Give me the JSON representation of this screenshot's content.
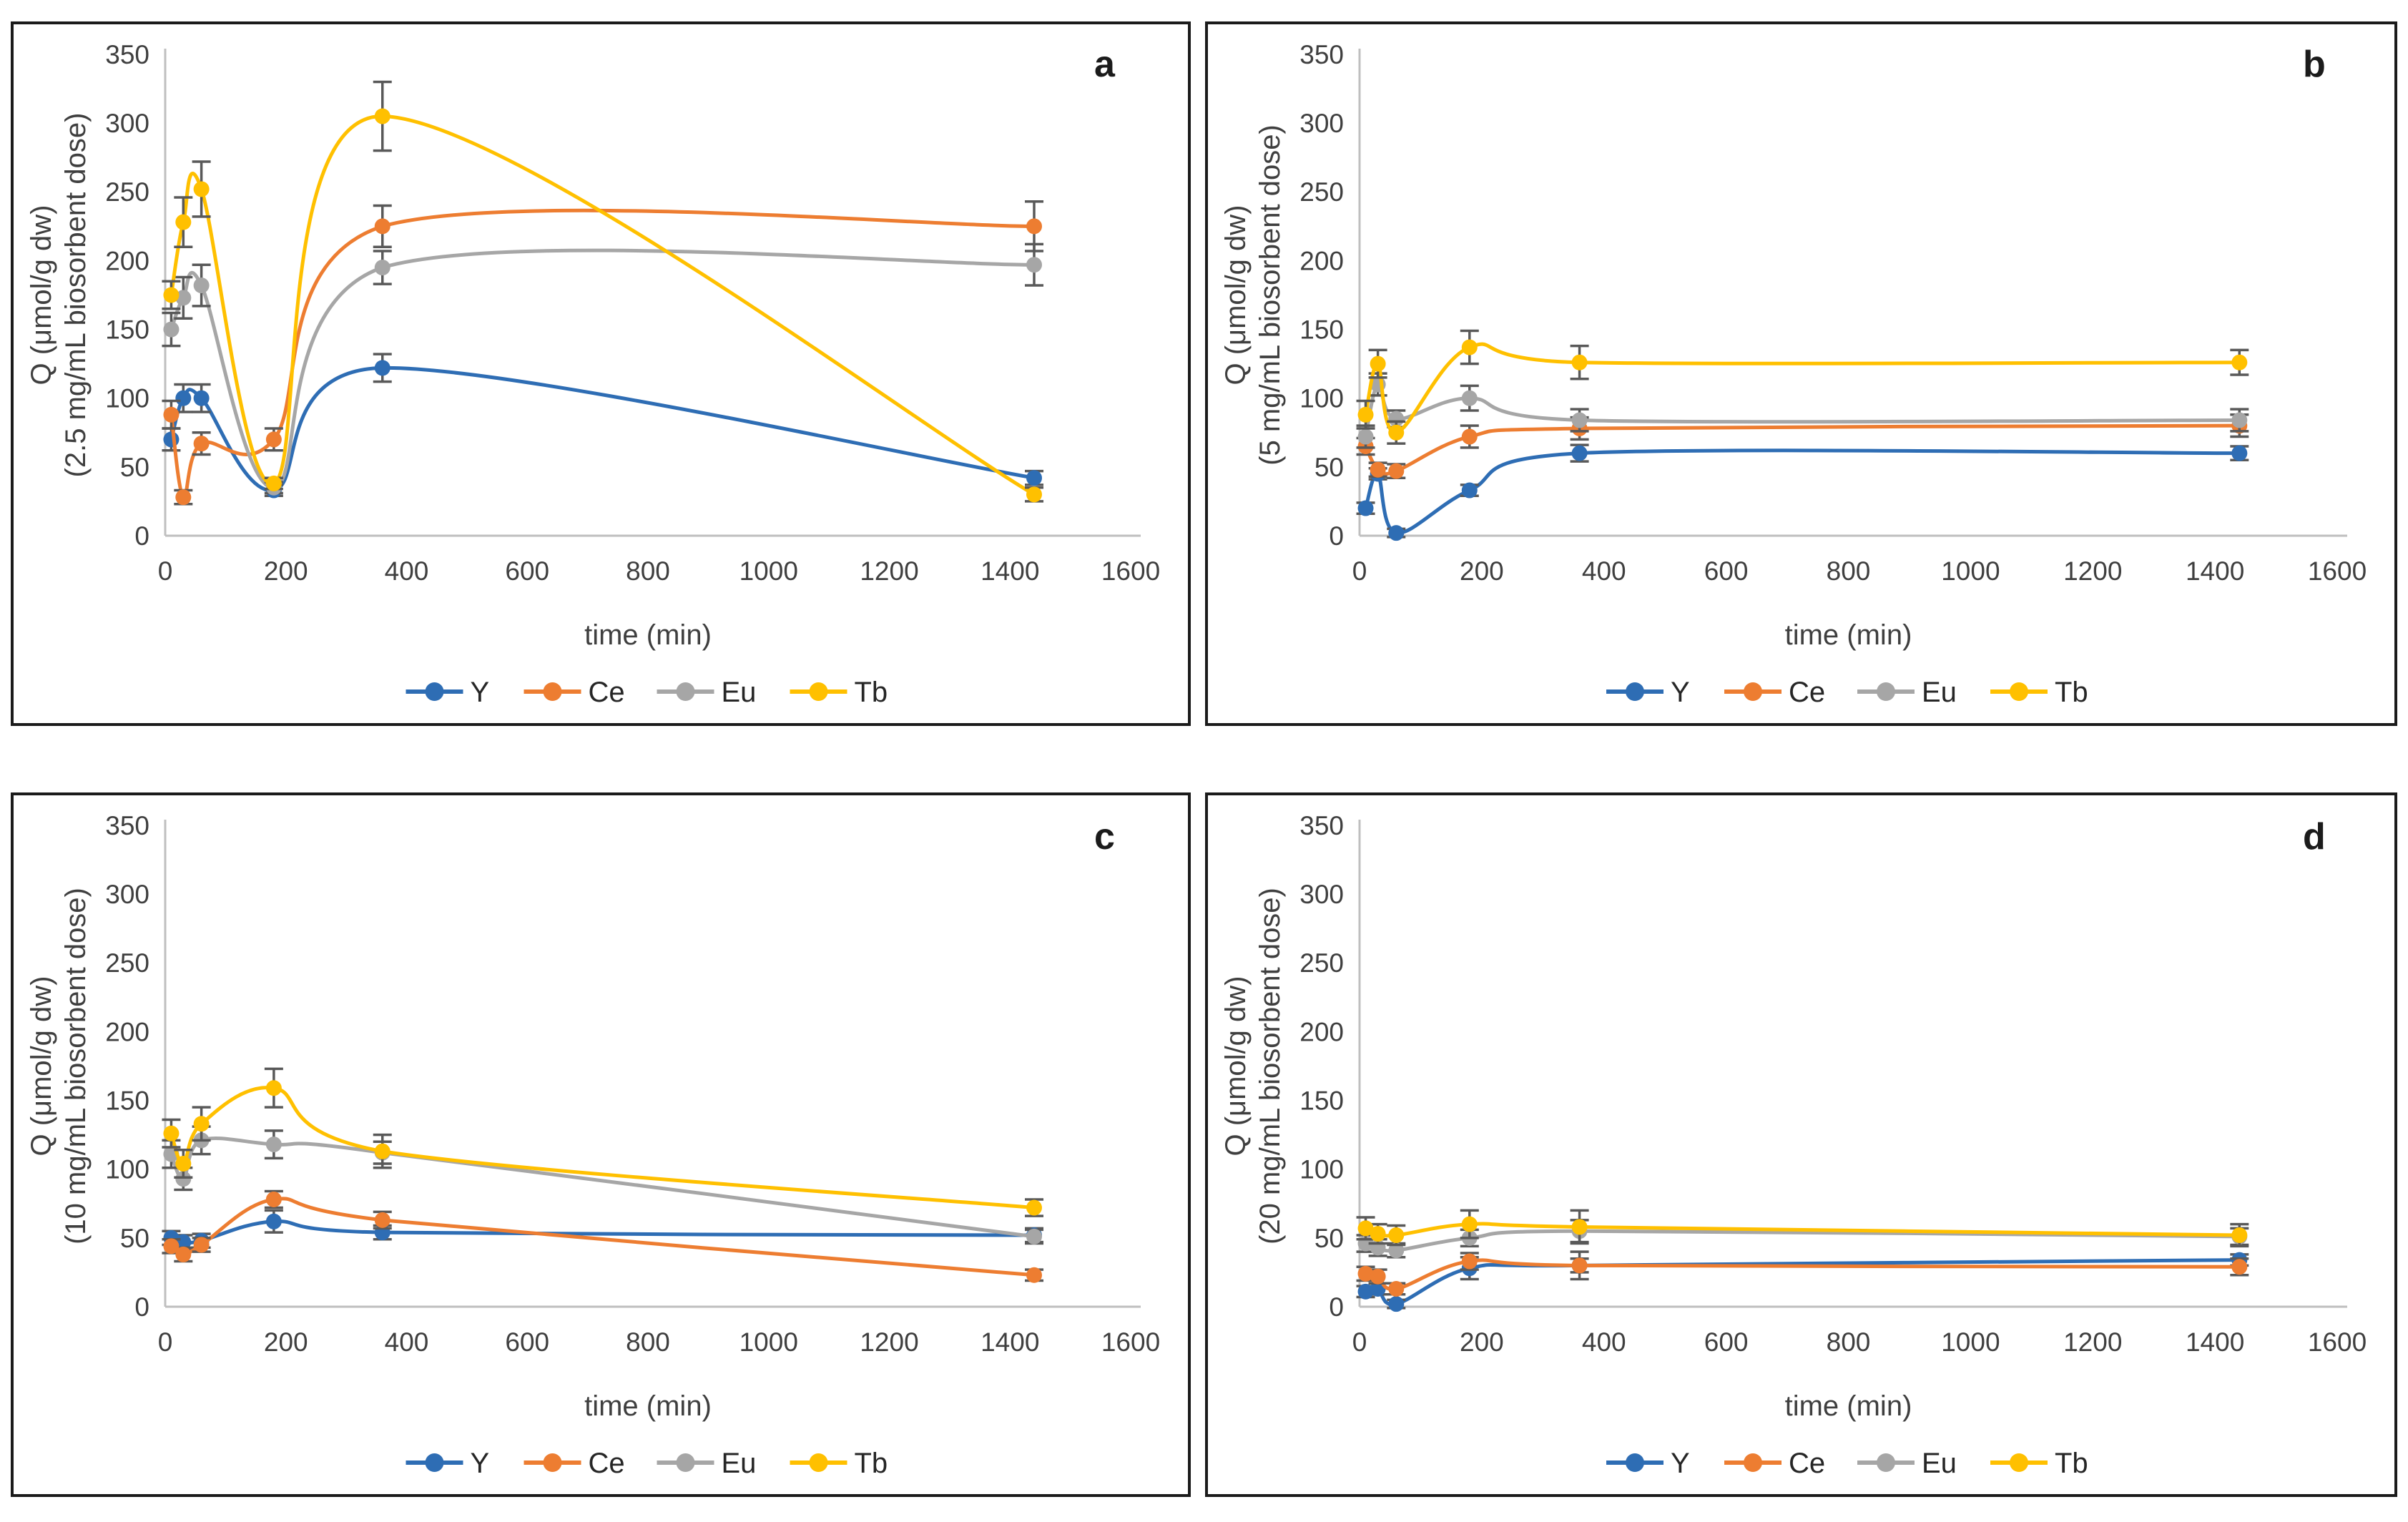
{
  "axes": {
    "xlabel": "time (min)",
    "xticks": [
      0,
      200,
      400,
      600,
      800,
      1000,
      1200,
      1400,
      1600
    ],
    "yticks": [
      0,
      50,
      100,
      150,
      200,
      250,
      300,
      350
    ],
    "xlim": [
      0,
      1600
    ],
    "ylim": [
      0,
      350
    ],
    "grid": false,
    "axis_color": "#BFBFBF",
    "text_color": "#3f3f3f",
    "error_bar_color": "#595959"
  },
  "legend": {
    "position": "bottom-center",
    "entries": [
      {
        "label": "Y",
        "color": "#2E6DB4"
      },
      {
        "label": "Ce",
        "color": "#ED7D31"
      },
      {
        "label": "Eu",
        "color": "#A6A6A6"
      },
      {
        "label": "Tb",
        "color": "#FFC000"
      }
    ]
  },
  "chart_data": [
    {
      "type": "line",
      "panel_letter": "a",
      "ylabel_line1": "Q (μmol/g dw)",
      "ylabel_line2": "(2.5 mg/mL biosorbent dose)",
      "xlabel": "time (min)",
      "x": [
        10,
        30,
        60,
        180,
        360,
        1440
      ],
      "series": [
        {
          "name": "Y",
          "color": "#2E6DB4",
          "values": [
            70,
            100,
            100,
            33,
            122,
            42
          ],
          "err": [
            8,
            10,
            10,
            4,
            10,
            5
          ]
        },
        {
          "name": "Ce",
          "color": "#ED7D31",
          "values": [
            88,
            28,
            67,
            70,
            225,
            225
          ],
          "err": [
            10,
            5,
            8,
            8,
            15,
            18
          ]
        },
        {
          "name": "Eu",
          "color": "#A6A6A6",
          "values": [
            150,
            173,
            182,
            35,
            195,
            197
          ],
          "err": [
            12,
            15,
            15,
            4,
            12,
            15
          ]
        },
        {
          "name": "Tb",
          "color": "#FFC000",
          "values": [
            175,
            228,
            252,
            38,
            305,
            30
          ],
          "err": [
            10,
            18,
            20,
            4,
            25,
            5
          ]
        }
      ]
    },
    {
      "type": "line",
      "panel_letter": "b",
      "ylabel_line1": "Q (μmol/g dw)",
      "ylabel_line2": "(5 mg/mL biosorbent dose)",
      "xlabel": "time (min)",
      "x": [
        10,
        30,
        60,
        180,
        360,
        1440
      ],
      "series": [
        {
          "name": "Y",
          "color": "#2E6DB4",
          "values": [
            20,
            45,
            2,
            33,
            60,
            60
          ],
          "err": [
            4,
            4,
            3,
            4,
            6,
            5
          ]
        },
        {
          "name": "Ce",
          "color": "#ED7D31",
          "values": [
            65,
            48,
            47,
            72,
            78,
            80
          ],
          "err": [
            6,
            5,
            5,
            8,
            8,
            8
          ]
        },
        {
          "name": "Eu",
          "color": "#A6A6A6",
          "values": [
            72,
            110,
            85,
            100,
            84,
            84
          ],
          "err": [
            8,
            8,
            6,
            9,
            8,
            8
          ]
        },
        {
          "name": "Tb",
          "color": "#FFC000",
          "values": [
            88,
            125,
            75,
            137,
            126,
            126
          ],
          "err": [
            10,
            10,
            8,
            12,
            12,
            9
          ]
        }
      ]
    },
    {
      "type": "line",
      "panel_letter": "c",
      "ylabel_line1": "Q (μmol/g dw)",
      "ylabel_line2": "(10 mg/mL biosorbent dose)",
      "xlabel": "time (min)",
      "x": [
        10,
        30,
        60,
        180,
        360,
        1440
      ],
      "series": [
        {
          "name": "Y",
          "color": "#2E6DB4",
          "values": [
            50,
            47,
            48,
            62,
            54,
            52
          ],
          "err": [
            5,
            5,
            5,
            8,
            5,
            5
          ]
        },
        {
          "name": "Ce",
          "color": "#ED7D31",
          "values": [
            44,
            38,
            45,
            78,
            63,
            23
          ],
          "err": [
            5,
            5,
            5,
            6,
            6,
            4
          ]
        },
        {
          "name": "Eu",
          "color": "#A6A6A6",
          "values": [
            111,
            93,
            121,
            118,
            112,
            51
          ],
          "err": [
            10,
            8,
            10,
            10,
            8,
            5
          ]
        },
        {
          "name": "Tb",
          "color": "#FFC000",
          "values": [
            126,
            104,
            133,
            159,
            113,
            72
          ],
          "err": [
            10,
            10,
            12,
            14,
            12,
            6
          ]
        }
      ]
    },
    {
      "type": "line",
      "panel_letter": "d",
      "ylabel_line1": "Q (μmol/g dw)",
      "ylabel_line2": "(20 mg/mL biosorbent dose)",
      "xlabel": "time (min)",
      "x": [
        10,
        30,
        60,
        180,
        360,
        1440
      ],
      "series": [
        {
          "name": "Y",
          "color": "#2E6DB4",
          "values": [
            11,
            13,
            2,
            28,
            30,
            34
          ],
          "err": [
            4,
            4,
            3,
            8,
            5,
            4
          ]
        },
        {
          "name": "Ce",
          "color": "#ED7D31",
          "values": [
            24,
            22,
            13,
            33,
            30,
            29
          ],
          "err": [
            5,
            5,
            4,
            6,
            10,
            6
          ]
        },
        {
          "name": "Eu",
          "color": "#A6A6A6",
          "values": [
            46,
            43,
            41,
            50,
            55,
            51
          ],
          "err": [
            6,
            6,
            5,
            6,
            8,
            6
          ]
        },
        {
          "name": "Tb",
          "color": "#FFC000",
          "values": [
            57,
            53,
            52,
            60,
            58,
            52
          ],
          "err": [
            8,
            7,
            7,
            10,
            12,
            8
          ]
        }
      ]
    }
  ]
}
